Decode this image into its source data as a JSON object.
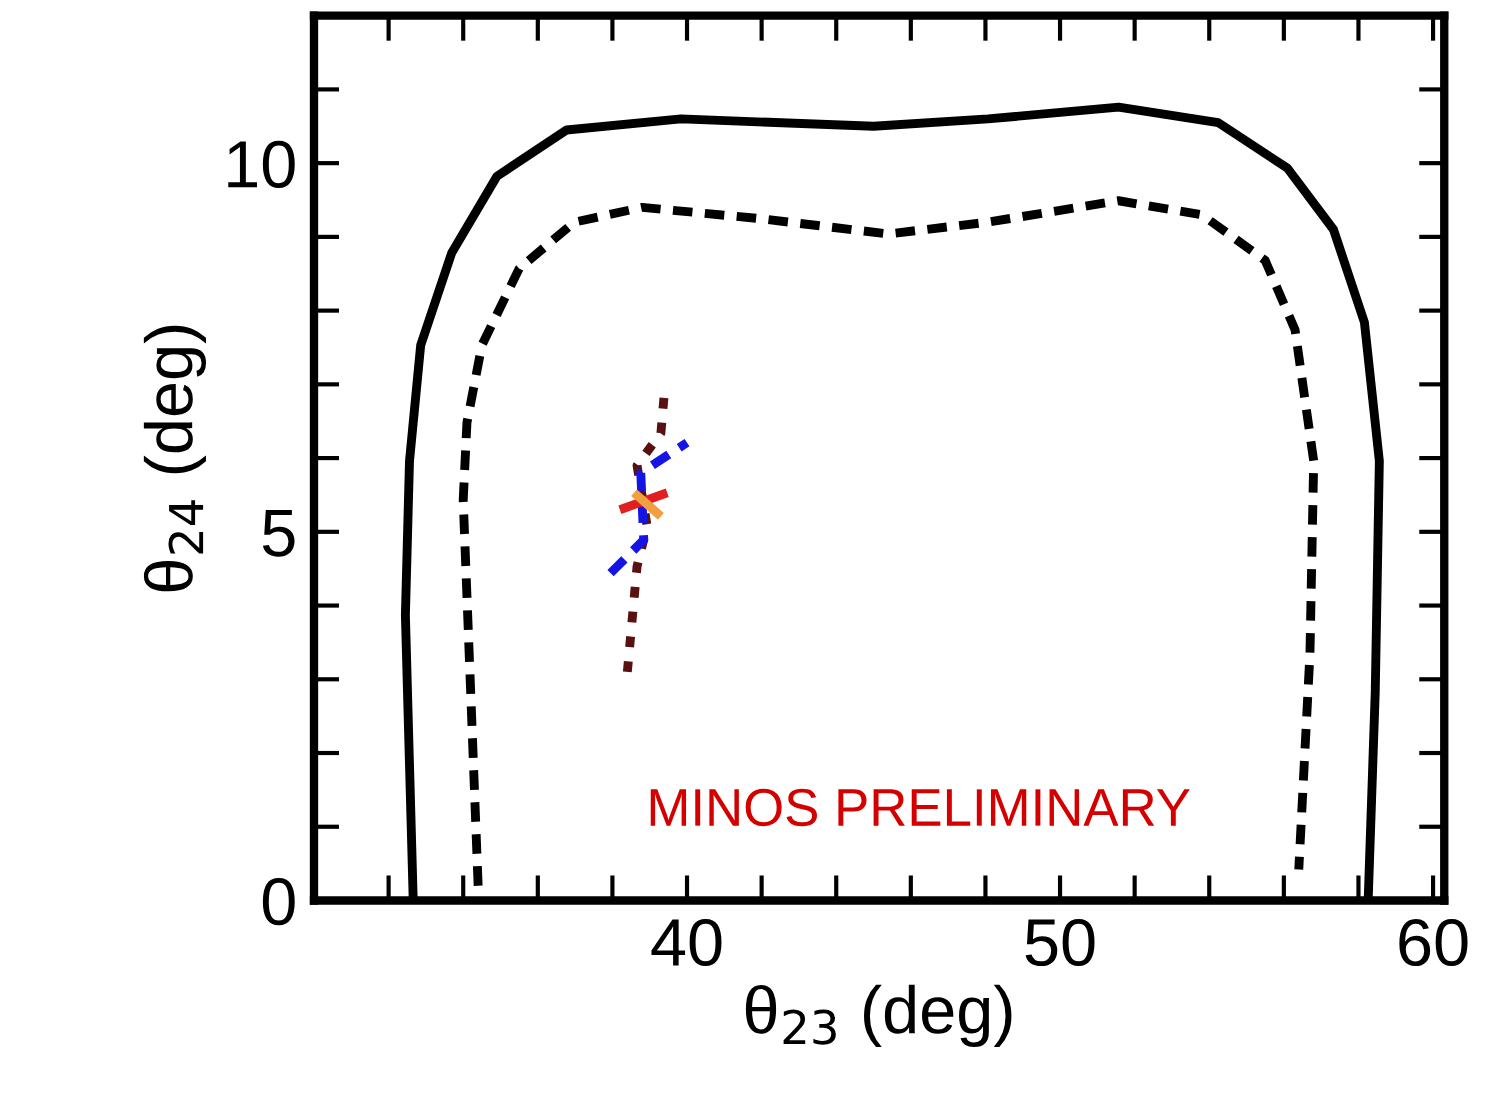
{
  "chart_data": {
    "type": "line",
    "xlabel": "θ$_{23}$ (deg)",
    "ylabel": "θ$_{24}$ (deg)",
    "xlim": [
      30,
      60.3
    ],
    "ylim": [
      0,
      12
    ],
    "xticks": [
      {
        "value": 32,
        "label": null
      },
      {
        "value": 34,
        "label": null
      },
      {
        "value": 36,
        "label": null
      },
      {
        "value": 38,
        "label": null
      },
      40,
      {
        "value": 42,
        "label": null
      },
      {
        "value": 44,
        "label": null
      },
      {
        "value": 46,
        "label": null
      },
      {
        "value": 48,
        "label": null
      },
      50,
      {
        "value": 52,
        "label": null
      },
      {
        "value": 54,
        "label": null
      },
      {
        "value": 56,
        "label": null
      },
      {
        "value": 58,
        "label": null
      },
      60
    ],
    "yticks": [
      0,
      {
        "value": 1,
        "label": null
      },
      {
        "value": 2,
        "label": null
      },
      {
        "value": 3,
        "label": null
      },
      {
        "value": 4,
        "label": null
      },
      5,
      {
        "value": 6,
        "label": null
      },
      {
        "value": 7,
        "label": null
      },
      {
        "value": 8,
        "label": null
      },
      {
        "value": 9,
        "label": null
      },
      10,
      {
        "value": 11,
        "label": null
      }
    ],
    "grid": false,
    "legend": false,
    "annotations": [
      "MINOS PRELIMINARY"
    ],
    "series": [
      {
        "color": "#000000",
        "line_style": "solid",
        "x": [
          32.66,
          32.45,
          32.56,
          32.86,
          33.69,
          34.9,
          36.77,
          39.84,
          45.0,
          48.07,
          51.57,
          54.24,
          56.1,
          57.33,
          58.16,
          58.56,
          58.45,
          58.26
        ],
        "values": [
          0,
          3.87,
          5.96,
          7.53,
          8.78,
          9.82,
          10.45,
          10.6,
          10.5,
          10.6,
          10.76,
          10.55,
          9.93,
          9.1,
          7.84,
          5.96,
          2.83,
          0
        ]
      },
      {
        "color": "#000000",
        "line_style": "dashed",
        "x": [
          34.4,
          34.2,
          34.0,
          34.1,
          34.5,
          35.5,
          36.98,
          38.8,
          41.9,
          45.4,
          48.07,
          51.57,
          53.8,
          55.5,
          56.3,
          56.8,
          56.7,
          56.4
        ],
        "values": [
          0.2,
          2.83,
          5.43,
          6.48,
          7.53,
          8.57,
          9.2,
          9.4,
          9.25,
          9.04,
          9.2,
          9.49,
          9.3,
          8.68,
          7.74,
          5.96,
          3.35,
          0.42
        ]
      },
      {
        "color": "#5a1010",
        "line_style": "dotted",
        "x": [
          38.4,
          38.66,
          38.93,
          38.66,
          39.3,
          39.4
        ],
        "values": [
          3.1,
          4.53,
          5.08,
          5.9,
          6.34,
          6.93
        ]
      },
      {
        "color": "#1414e6",
        "line_style": "dashed",
        "x": [
          37.95,
          38.84,
          38.76,
          40.0
        ],
        "values": [
          4.44,
          4.89,
          5.8,
          6.21
        ]
      },
      {
        "color": "#e02020",
        "line_style": "solid",
        "x": [
          38.2,
          39.47
        ],
        "values": [
          5.3,
          5.53
        ]
      },
      {
        "color": "#f0a040",
        "line_style": "solid",
        "x": [
          38.58,
          39.3
        ],
        "values": [
          5.53,
          5.21
        ]
      }
    ]
  }
}
